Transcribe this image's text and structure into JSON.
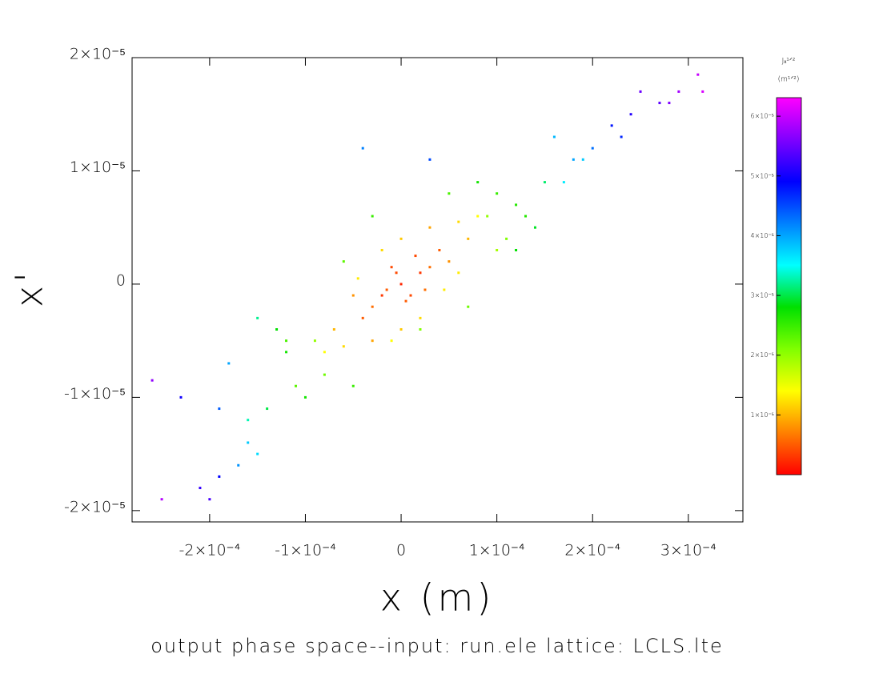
{
  "chart_data": {
    "type": "scatter",
    "title": "output phase space--input: run.ele  lattice: LCLS.lte",
    "x_label": "x (m)",
    "y_label": "x'",
    "xlim": [
      -0.000281,
      0.000357
    ],
    "ylim": [
      -2.1e-05,
      2e-05
    ],
    "xticks": [
      {
        "value": -0.0002,
        "label": "-2×10⁻⁴"
      },
      {
        "value": -0.0001,
        "label": "-1×10⁻⁴"
      },
      0,
      {
        "value": 0.0001,
        "label": "1×10⁻⁴"
      },
      {
        "value": 0.0002,
        "label": "2×10⁻⁴"
      },
      {
        "value": 0.0003,
        "label": "3×10⁻⁴"
      }
    ],
    "yticks": [
      {
        "value": -2e-05,
        "label": "-2×10⁻⁵"
      },
      {
        "value": -1e-05,
        "label": "-1×10⁻⁵"
      },
      0,
      {
        "value": 1e-05,
        "label": "1×10⁻⁵"
      },
      {
        "value": 2e-05,
        "label": "2×10⁻⁵"
      }
    ],
    "colorbar": {
      "title": "Jₓ¹ᐟ²",
      "unit": "(m¹ᐟ²)",
      "clim": [
        0,
        6.31e-05
      ],
      "ticks": [
        {
          "value": 1e-05,
          "label": "1×10⁻⁵"
        },
        {
          "value": 2e-05,
          "label": "2×10⁻⁵"
        },
        {
          "value": 3e-05,
          "label": "3×10⁻⁵"
        },
        {
          "value": 4e-05,
          "label": "4×10⁻⁵"
        },
        {
          "value": 5e-05,
          "label": "5×10⁻⁵"
        },
        {
          "value": 6e-05,
          "label": "6×10⁻⁵"
        }
      ],
      "colormap": [
        "#ff0000",
        "#ff8000",
        "#ffff00",
        "#80ff00",
        "#00e000",
        "#00ffff",
        "#0080ff",
        "#0000ff",
        "#8000ff",
        "#ff00ff"
      ]
    },
    "series": [
      {
        "x": [
          0,
          2e-05,
          -2e-05,
          1e-05,
          -1e-05,
          4e-05,
          -4e-05,
          3e-05,
          -3e-05,
          1.5e-05,
          -1.5e-05,
          2.5e-05,
          5e-06,
          -5e-06,
          5e-05,
          -5e-05,
          3e-05,
          -3e-05,
          7e-05,
          -7e-05,
          0,
          0,
          6e-05,
          -6e-05,
          4.5e-05,
          -4.5e-05,
          8e-05,
          -8e-05,
          2e-05,
          -2e-05,
          6e-05,
          -1e-05,
          9e-05,
          0.0001,
          0.00012,
          -9e-05,
          -0.00012,
          -0.00013,
          -0.0001,
          -0.00014,
          5e-05,
          -3e-05,
          7e-05,
          -0.00015,
          0.00015,
          0.00011,
          -0.00011,
          0.0001,
          -8e-05,
          0.00013,
          -0.00012,
          2e-05,
          -6e-05,
          0.00014,
          -0.00016,
          8e-05,
          -5e-05,
          0.00012,
          -0.00016,
          -0.00018,
          0.00018,
          0.0002,
          -0.00017,
          -4e-05,
          0.00016,
          -0.00015,
          0.00017,
          -0.00019,
          3e-05,
          0.00019,
          0.00022,
          0.00024,
          -0.00019,
          -0.00021,
          0.00027,
          -0.00023,
          0.00023,
          -0.0002,
          0.00025,
          0.00031,
          0.00029,
          -0.00025,
          -0.00026,
          0.000315,
          0.00028
        ],
        "y": [
          0,
          1e-06,
          -1e-06,
          -1e-06,
          1.5e-06,
          3e-06,
          -3e-06,
          1.5e-06,
          -2e-06,
          2.5e-06,
          -5e-07,
          -5e-07,
          -1.5e-06,
          1e-06,
          2e-06,
          -1e-06,
          5e-06,
          -5e-06,
          4e-06,
          -4e-06,
          4e-06,
          -4e-06,
          5.5e-06,
          -5.5e-06,
          -5e-07,
          5e-07,
          6e-06,
          -6e-06,
          -3e-06,
          3e-06,
          1e-06,
          -5e-06,
          6e-06,
          8e-06,
          7e-06,
          -5e-06,
          -6e-06,
          -4e-06,
          -1e-05,
          -1.1e-05,
          8e-06,
          6e-06,
          -2e-06,
          -3e-06,
          9e-06,
          4e-06,
          -9e-06,
          3e-06,
          -8e-06,
          6e-06,
          -5e-06,
          -4e-06,
          2e-06,
          5e-06,
          -1.2e-05,
          9e-06,
          -9e-06,
          3e-06,
          -1.4e-05,
          -7e-06,
          1.1e-05,
          1.2e-05,
          -1.6e-05,
          1.2e-05,
          1.3e-05,
          -1.5e-05,
          9e-06,
          -1.1e-05,
          1.1e-05,
          1.1e-05,
          1.4e-05,
          1.5e-05,
          -1.7e-05,
          -1.8e-05,
          1.6e-05,
          -1e-05,
          1.3e-05,
          -1.9e-05,
          1.7e-05,
          1.85e-05,
          1.7e-05,
          -1.9e-05,
          -8.5e-06,
          1.7e-05,
          1.6e-05
        ],
        "c": [
          2e-06,
          3e-06,
          3e-06,
          4e-06,
          4e-06,
          5e-06,
          5e-06,
          6e-06,
          6e-06,
          4e-06,
          5e-06,
          6e-06,
          5e-06,
          4e-06,
          8e-06,
          8e-06,
          9e-06,
          9e-06,
          1e-05,
          1e-05,
          1.1e-05,
          1.1e-05,
          1.2e-05,
          1.2e-05,
          1.3e-05,
          1.3e-05,
          1.4e-05,
          1.4e-05,
          1.2e-05,
          1.2e-05,
          1.3e-05,
          1.4e-05,
          2e-05,
          2.5e-05,
          2.6e-05,
          2e-05,
          2.7e-05,
          2.8e-05,
          2.7e-05,
          3e-05,
          2.4e-05,
          2.5e-05,
          2.2e-05,
          3.2e-05,
          3.1e-05,
          2.1e-05,
          2.3e-05,
          1.9e-05,
          2.2e-05,
          2.6e-05,
          2.4e-05,
          2.1e-05,
          2.3e-05,
          2.9e-05,
          3.3e-05,
          2.7e-05,
          2.5e-05,
          2.8e-05,
          3.8e-05,
          4e-05,
          4e-05,
          4.3e-05,
          4.1e-05,
          4.2e-05,
          3.9e-05,
          3.7e-05,
          3.6e-05,
          4.4e-05,
          4.5e-05,
          3.8e-05,
          4.8e-05,
          5.1e-05,
          4.9e-05,
          5.2e-05,
          5.4e-05,
          5e-05,
          4.7e-05,
          5.3e-05,
          5.5e-05,
          6e-05,
          5.8e-05,
          5.9e-05,
          5.7e-05,
          6.1e-05,
          5.6e-05
        ]
      }
    ]
  }
}
